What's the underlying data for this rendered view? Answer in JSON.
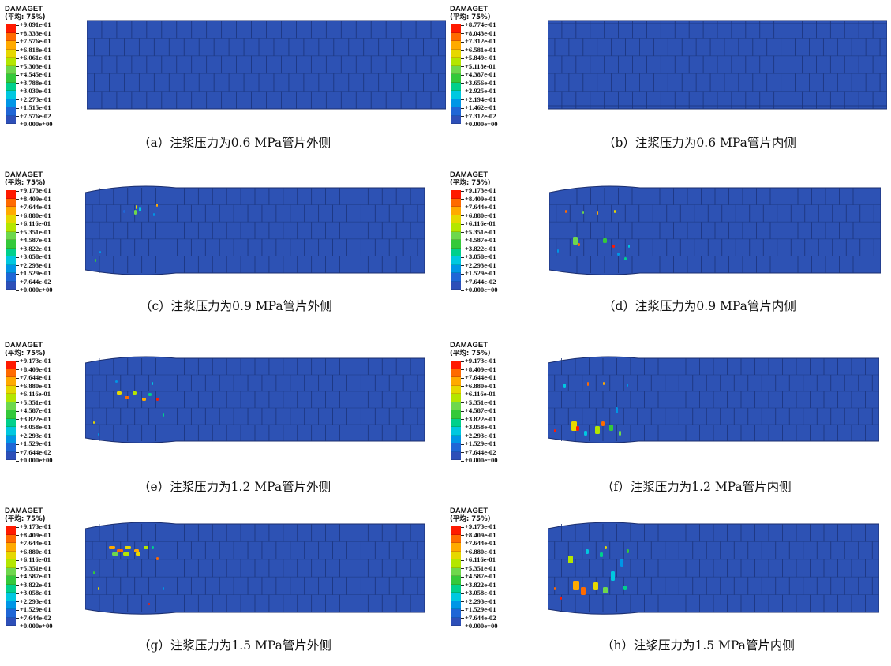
{
  "legend_colors": [
    "#ff1a00",
    "#ff6a00",
    "#ffaa00",
    "#e6d800",
    "#b4e600",
    "#6ed84c",
    "#34c93a",
    "#00d08c",
    "#00c8e0",
    "#0096e6",
    "#1f66d6",
    "#2d4fb8"
  ],
  "panels": [
    {
      "id": "a",
      "legend_title": "DAMAGET",
      "legend_sub": "(平均: 75%)",
      "legend_values": [
        "+9.091e-01",
        "+8.333e-01",
        "+7.576e-01",
        "+6.818e-01",
        "+6.061e-01",
        "+5.303e-01",
        "+4.545e-01",
        "+3.788e-01",
        "+3.030e-01",
        "+2.273e-01",
        "+1.515e-01",
        "+7.576e-02",
        "+0.000e+00"
      ],
      "caption": "（a）注浆压力为0.6 MPa管片外侧",
      "side": "outer",
      "pressure_mpa": 0.6
    },
    {
      "id": "b",
      "legend_title": "DAMAGET",
      "legend_sub": "(平均: 75%)",
      "legend_values": [
        "+8.774e-01",
        "+8.043e-01",
        "+7.312e-01",
        "+6.581e-01",
        "+5.849e-01",
        "+5.118e-01",
        "+4.387e-01",
        "+3.656e-01",
        "+2.925e-01",
        "+2.194e-01",
        "+1.462e-01",
        "+7.312e-02",
        "+0.000e+00"
      ],
      "caption": "（b）注浆压力为0.6 MPa管片内侧",
      "side": "inner",
      "pressure_mpa": 0.6
    },
    {
      "id": "c",
      "legend_title": "DAMAGET",
      "legend_sub": "(平均: 75%)",
      "legend_values": [
        "+9.173e-01",
        "+8.409e-01",
        "+7.644e-01",
        "+6.880e-01",
        "+6.116e-01",
        "+5.351e-01",
        "+4.587e-01",
        "+3.822e-01",
        "+3.058e-01",
        "+2.293e-01",
        "+1.529e-01",
        "+7.644e-02",
        "+0.000e+00"
      ],
      "caption": "（c）注浆压力为0.9 MPa管片外侧",
      "side": "outer",
      "pressure_mpa": 0.9
    },
    {
      "id": "d",
      "legend_title": "DAMAGET",
      "legend_sub": "(平均: 75%)",
      "legend_values": [
        "+9.173e-01",
        "+8.409e-01",
        "+7.644e-01",
        "+6.880e-01",
        "+6.116e-01",
        "+5.351e-01",
        "+4.587e-01",
        "+3.822e-01",
        "+3.058e-01",
        "+2.293e-01",
        "+1.529e-01",
        "+7.644e-02",
        "+0.000e+00"
      ],
      "caption": "（d）注浆压力为0.9 MPa管片内侧",
      "side": "inner",
      "pressure_mpa": 0.9
    },
    {
      "id": "e",
      "legend_title": "DAMAGET",
      "legend_sub": "(平均: 75%)",
      "legend_values": [
        "+9.173e-01",
        "+8.409e-01",
        "+7.644e-01",
        "+6.880e-01",
        "+6.116e-01",
        "+5.351e-01",
        "+4.587e-01",
        "+3.822e-01",
        "+3.058e-01",
        "+2.293e-01",
        "+1.529e-01",
        "+7.644e-02",
        "+0.000e+00"
      ],
      "caption": "（e）注浆压力为1.2 MPa管片外侧",
      "side": "outer",
      "pressure_mpa": 1.2
    },
    {
      "id": "f",
      "legend_title": "DAMAGET",
      "legend_sub": "(平均: 75%)",
      "legend_values": [
        "+9.173e-01",
        "+8.409e-01",
        "+7.644e-01",
        "+6.880e-01",
        "+6.116e-01",
        "+5.351e-01",
        "+4.587e-01",
        "+3.822e-01",
        "+3.058e-01",
        "+2.293e-01",
        "+1.529e-01",
        "+7.644e-02",
        "+0.000e+00"
      ],
      "caption": "（f）注浆压力为1.2 MPa管片内侧",
      "side": "inner",
      "pressure_mpa": 1.2
    },
    {
      "id": "g",
      "legend_title": "DAMAGET",
      "legend_sub": "(平均: 75%)",
      "legend_values": [
        "+9.173e-01",
        "+8.409e-01",
        "+7.644e-01",
        "+6.880e-01",
        "+6.116e-01",
        "+5.351e-01",
        "+4.587e-01",
        "+3.822e-01",
        "+3.058e-01",
        "+2.293e-01",
        "+1.529e-01",
        "+7.644e-02",
        "+0.000e+00"
      ],
      "caption": "（g）注浆压力为1.5 MPa管片外侧",
      "side": "outer",
      "pressure_mpa": 1.5
    },
    {
      "id": "h",
      "legend_title": "DAMAGET",
      "legend_sub": "(平均: 75%)",
      "legend_values": [
        "+9.173e-01",
        "+8.409e-01",
        "+7.644e-01",
        "+6.880e-01",
        "+6.116e-01",
        "+5.351e-01",
        "+4.587e-01",
        "+3.822e-01",
        "+3.058e-01",
        "+2.293e-01",
        "+1.529e-01",
        "+7.644e-02",
        "+0.000e+00"
      ],
      "caption": "（h）注浆压力为1.5 MPa管片内侧",
      "side": "inner",
      "pressure_mpa": 1.5
    }
  ]
}
